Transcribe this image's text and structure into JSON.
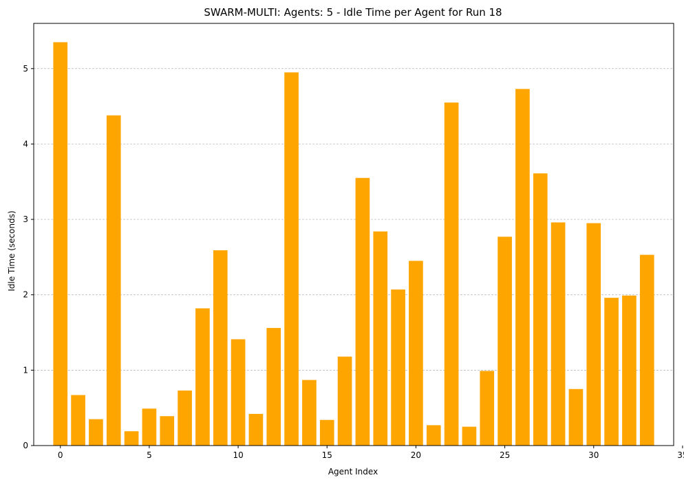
{
  "chart_data": {
    "type": "bar",
    "title": "SWARM-MULTI: Agents: 5 - Idle Time per Agent for Run 18",
    "xlabel": "Agent Index",
    "ylabel": "Idle Time (seconds)",
    "x": [
      0,
      1,
      2,
      3,
      4,
      5,
      6,
      7,
      8,
      9,
      10,
      11,
      12,
      13,
      14,
      15,
      16,
      17,
      18,
      19,
      20,
      21,
      22,
      23,
      24,
      25,
      26,
      27,
      28,
      29,
      30,
      31,
      32,
      33
    ],
    "values": [
      5.35,
      0.67,
      0.35,
      4.38,
      0.19,
      0.49,
      0.39,
      0.73,
      1.82,
      2.59,
      1.41,
      0.42,
      1.56,
      4.95,
      0.87,
      0.34,
      1.18,
      3.55,
      2.84,
      2.07,
      2.45,
      0.27,
      4.55,
      0.25,
      0.99,
      2.77,
      4.73,
      3.61,
      2.96,
      0.75,
      2.95,
      1.96,
      1.99,
      2.53
    ],
    "xlim": [
      -1.5,
      34.5
    ],
    "ylim": [
      0,
      5.6
    ],
    "xticks": [
      0,
      5,
      10,
      15,
      20,
      25,
      30,
      35
    ],
    "yticks": [
      0,
      1,
      2,
      3,
      4,
      5
    ],
    "grid": "y-dashed",
    "bar_color": "#FFA500",
    "grid_color": "#b0b0b0"
  }
}
